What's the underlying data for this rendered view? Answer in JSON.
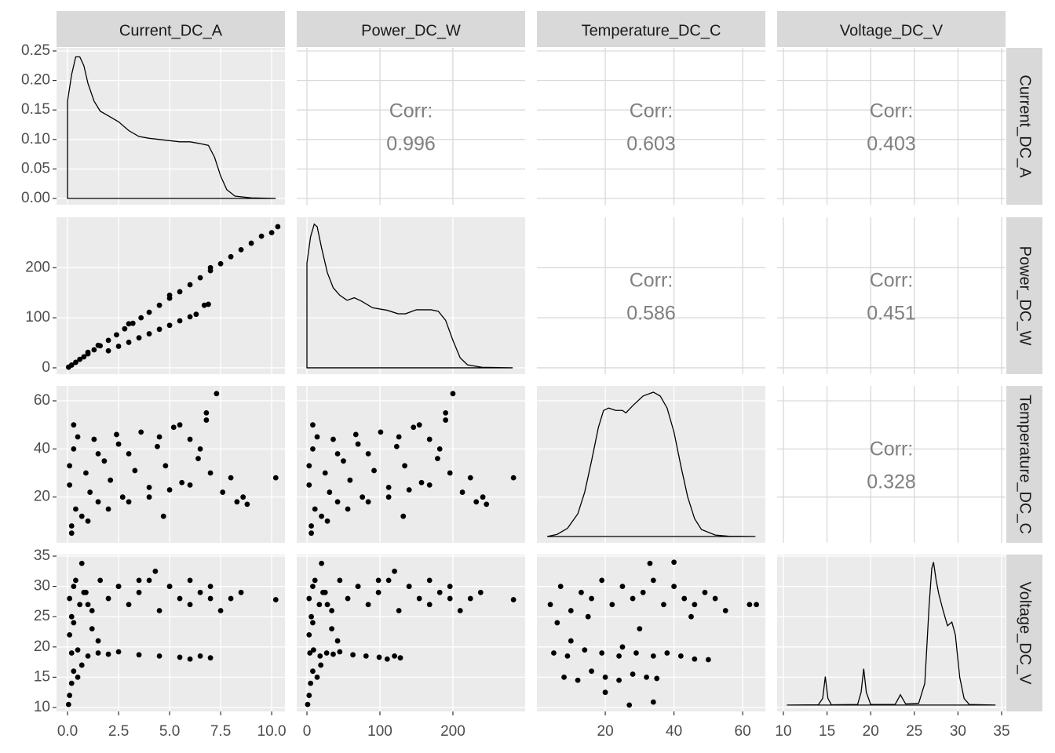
{
  "chart_data": {
    "type": "pairs",
    "variables": [
      "Current_DC_A",
      "Power_DC_W",
      "Temperature_DC_C",
      "Voltage_DC_V"
    ],
    "corr_label": "Corr:",
    "color": "#000000",
    "grid": true,
    "columns": [
      {
        "xlim": [
          -0.54,
          10.65
        ],
        "xticks": [
          {
            "value": 0,
            "label": "0.0"
          },
          2.5,
          {
            "value": 5,
            "label": "5.0"
          },
          7.5,
          {
            "value": 10,
            "label": "10.0"
          }
        ]
      },
      {
        "xlim": [
          -14,
          299
        ],
        "xticks": [
          0,
          100,
          200
        ]
      },
      {
        "xlim": [
          0.1,
          66.6
        ],
        "xticks": [
          20,
          40,
          60
        ]
      },
      {
        "xlim": [
          9.28,
          35.45
        ],
        "xticks": [
          10,
          15,
          20,
          25,
          30,
          35
        ]
      }
    ],
    "rows": [
      {
        "ylim": [
          -0.0106,
          0.2553
        ],
        "yticks": [
          {
            "value": 0,
            "label": "0.00"
          },
          {
            "value": 0.05,
            "label": "0.05"
          },
          {
            "value": 0.1,
            "label": "0.10"
          },
          {
            "value": 0.15,
            "label": "0.15"
          },
          {
            "value": 0.2,
            "label": "0.20"
          },
          0.25
        ]
      },
      {
        "ylim": [
          -12.6,
          300.8
        ],
        "yticks": [
          0,
          100,
          200
        ]
      },
      {
        "ylim": [
          0.98,
          66.2
        ],
        "yticks": [
          20,
          40,
          60
        ]
      },
      {
        "ylim": [
          9.35,
          35.26
        ],
        "yticks": [
          10,
          15,
          20,
          25,
          30,
          35
        ]
      }
    ],
    "panels": [
      [
        {
          "type": "density",
          "x": [
            0,
            0,
            0.2,
            0.4,
            0.6,
            0.8,
            1.0,
            1.3,
            1.6,
            2.0,
            2.5,
            3.0,
            3.5,
            4.0,
            5.0,
            5.5,
            6.0,
            6.5,
            6.9,
            7.2,
            7.5,
            7.8,
            8.2,
            9,
            10.2
          ],
          "y": [
            0,
            0.165,
            0.21,
            0.24,
            0.24,
            0.225,
            0.195,
            0.165,
            0.148,
            0.14,
            0.13,
            0.115,
            0.105,
            0.102,
            0.098,
            0.096,
            0.096,
            0.093,
            0.09,
            0.07,
            0.038,
            0.015,
            0.004,
            0.001,
            0
          ]
        },
        {
          "type": "corr",
          "value": 0.996
        },
        {
          "type": "corr",
          "value": 0.603
        },
        {
          "type": "corr",
          "value": 0.403
        }
      ],
      [
        {
          "type": "scatter",
          "x": [
            0.05,
            0.2,
            0.4,
            0.6,
            0.8,
            1.0,
            1.3,
            1.6,
            2.0,
            2.4,
            2.8,
            3.2,
            3.6,
            4.0,
            4.5,
            5.0,
            5.5,
            6.0,
            6.5,
            7.0,
            7.5,
            8.0,
            8.5,
            9.0,
            9.5,
            10.0,
            10.3,
            2.0,
            2.5,
            3.0,
            3.5,
            4.0,
            4.5,
            5.0,
            5.5,
            6.0,
            6.3,
            6.7,
            6.9,
            1.0,
            1.5,
            3.0,
            5.0,
            7.0
          ],
          "y": [
            1.4,
            5.5,
            11,
            17,
            22,
            28,
            36,
            44,
            55,
            66,
            78,
            89,
            100,
            111,
            125,
            139,
            152,
            166,
            180,
            194,
            208,
            222,
            236,
            249,
            263,
            270,
            282,
            34,
            43,
            51,
            60,
            68,
            77,
            85,
            94,
            102,
            107,
            125,
            127,
            31,
            45,
            88,
            145,
            200
          ]
        },
        {
          "type": "density",
          "x": [
            0,
            0,
            5,
            10,
            14,
            20,
            28,
            36,
            45,
            55,
            65,
            75,
            90,
            110,
            125,
            135,
            150,
            170,
            180,
            190,
            200,
            210,
            220,
            240,
            282
          ],
          "y": [
            0,
            209,
            262,
            287,
            282,
            240,
            190,
            160,
            145,
            135,
            140,
            133,
            120,
            115,
            108,
            108,
            116,
            116,
            113,
            95,
            55,
            20,
            6,
            1,
            0
          ]
        },
        {
          "type": "corr",
          "value": 0.586
        },
        {
          "type": "corr",
          "value": 0.451
        }
      ],
      [
        {
          "type": "scatter",
          "x": [
            0.1,
            0.2,
            0.3,
            0.5,
            0.7,
            0.9,
            1.1,
            1.3,
            1.5,
            1.8,
            2.1,
            2.4,
            2.7,
            3.0,
            3.3,
            3.6,
            4.0,
            4.4,
            4.8,
            5.2,
            5.6,
            6.0,
            6.4,
            6.8,
            7.0,
            7.3,
            7.6,
            8.0,
            8.3,
            8.6,
            8.8,
            0.2,
            0.4,
            1.0,
            2.0,
            3.0,
            4.0,
            5.0,
            6.0,
            6.8,
            0.1,
            0.3,
            1.5,
            2.5,
            4.7,
            4.5,
            5.5,
            6.5,
            10.2
          ],
          "y": [
            25,
            8,
            40,
            45,
            12,
            30,
            22,
            44,
            18,
            35,
            27,
            46,
            20,
            38,
            31,
            47,
            24,
            41,
            33,
            49,
            26,
            44,
            36,
            52,
            30,
            63,
            22,
            28,
            18,
            20,
            17,
            5,
            15,
            10,
            15,
            18,
            20,
            23,
            25,
            55,
            33,
            50,
            38,
            42,
            12,
            45,
            50,
            40,
            28
          ]
        },
        {
          "type": "scatter",
          "x": [
            3,
            6,
            8,
            14,
            20,
            25,
            31,
            36,
            42,
            50,
            59,
            67,
            76,
            84,
            92,
            101,
            112,
            123,
            134,
            146,
            157,
            168,
            179,
            190,
            196,
            200,
            213,
            224,
            232,
            241,
            246,
            6,
            11,
            28,
            56,
            84,
            112,
            140,
            168,
            190,
            3,
            8,
            42,
            70,
            132,
            126,
            154,
            182,
            283
          ],
          "y": [
            25,
            8,
            40,
            45,
            12,
            30,
            22,
            44,
            18,
            35,
            27,
            46,
            20,
            38,
            31,
            47,
            24,
            41,
            33,
            49,
            26,
            44,
            36,
            52,
            30,
            63,
            22,
            28,
            18,
            20,
            17,
            5,
            15,
            10,
            15,
            18,
            20,
            23,
            25,
            55,
            33,
            50,
            38,
            42,
            12,
            45,
            50,
            40,
            28
          ]
        },
        {
          "type": "density",
          "x": [
            3.1,
            6,
            9,
            12,
            14,
            16,
            18,
            19.5,
            21,
            23,
            25,
            26,
            28,
            31,
            34,
            36,
            38,
            40,
            42,
            44,
            46,
            48,
            52,
            56,
            63.7
          ],
          "y": [
            3.6,
            4.5,
            7,
            13,
            22,
            35,
            49,
            56,
            57,
            56,
            56,
            55,
            58,
            62,
            63.6,
            62,
            57,
            47,
            33,
            20,
            11,
            6.5,
            4.2,
            3.7,
            3.6
          ]
        },
        {
          "type": "corr",
          "value": 0.328
        }
      ],
      [
        {
          "type": "scatter",
          "x": [
            0.1,
            0.3,
            0.6,
            0.9,
            1.2,
            1.6,
            2.0,
            2.5,
            3.0,
            3.5,
            4.0,
            4.5,
            5.0,
            5.5,
            6.0,
            6.5,
            7.0,
            7.5,
            8.0,
            8.5,
            10.2,
            0.2,
            0.5,
            1.0,
            1.5,
            2.0,
            2.5,
            3.5,
            4.5,
            5.5,
            6.0,
            6.5,
            7.0,
            0.2,
            0.4,
            0.8,
            1.0,
            2.5,
            3.5,
            5.0,
            6.0,
            7.0,
            0.05,
            0.1,
            0.2,
            0.3,
            0.5,
            0.7,
            0.1,
            1.2,
            1.5,
            0.7,
            0.3,
            4.3
          ],
          "y": [
            28,
            30,
            27,
            29,
            26,
            31,
            28,
            30,
            27,
            29,
            31,
            26,
            30,
            28,
            27,
            29,
            28,
            26,
            28,
            29,
            27.8,
            19,
            19.5,
            18.5,
            19,
            18.8,
            19.2,
            18.7,
            18.5,
            18.3,
            18,
            18.5,
            18.2,
            25,
            31,
            29,
            27,
            30,
            31,
            30,
            31,
            30,
            10.5,
            12,
            14,
            16,
            15,
            17,
            22,
            23,
            21,
            33.8,
            24,
            32.5
          ]
        },
        {
          "type": "scatter",
          "x": [
            3,
            8,
            17,
            25,
            34,
            45,
            56,
            70,
            84,
            98,
            112,
            126,
            140,
            154,
            168,
            182,
            196,
            210,
            224,
            238,
            283,
            4,
            9,
            18,
            27,
            36,
            45,
            63,
            81,
            99,
            110,
            120,
            128,
            6,
            11,
            22,
            28,
            70,
            98,
            140,
            168,
            196,
            1,
            3,
            5,
            8,
            14,
            19,
            3,
            34,
            42,
            20,
            8,
            120
          ],
          "y": [
            28,
            30,
            27,
            29,
            26,
            31,
            28,
            30,
            27,
            29,
            31,
            26,
            30,
            28,
            27,
            29,
            28,
            26,
            28,
            29,
            27.8,
            19,
            19.5,
            18.5,
            19,
            18.8,
            19.2,
            18.7,
            18.5,
            18.3,
            18,
            18.5,
            18.2,
            25,
            31,
            29,
            27,
            30,
            31,
            30,
            31,
            30,
            10.5,
            12,
            14,
            16,
            15,
            17,
            22,
            23,
            21,
            33.8,
            24,
            32.5
          ]
        },
        {
          "type": "scatter",
          "x": [
            4,
            7,
            10,
            13,
            16,
            19,
            22,
            25,
            28,
            31,
            34,
            37,
            40,
            43,
            46,
            49,
            52,
            55,
            62,
            64,
            5,
            9,
            14,
            19,
            24,
            29,
            34,
            38,
            42,
            46,
            50,
            8,
            12,
            16,
            20,
            24,
            28,
            32,
            35,
            20,
            27,
            34,
            33,
            40,
            6,
            15,
            30,
            45,
            10,
            25
          ],
          "y": [
            27,
            30,
            26,
            29,
            28,
            31,
            27,
            30,
            28,
            29,
            31,
            27,
            30,
            28,
            27,
            29,
            28,
            26,
            27,
            27,
            19,
            18.5,
            19.5,
            19,
            18.5,
            19,
            18.5,
            19,
            18.5,
            18,
            17.9,
            15,
            14.5,
            16,
            15,
            14.5,
            15.5,
            15,
            14.8,
            12.5,
            10.4,
            10.9,
            33.8,
            34,
            24,
            25,
            23,
            25,
            21,
            20
          ]
        },
        {
          "type": "density",
          "x": [
            10.4,
            14,
            14.5,
            14.8,
            15.1,
            15.5,
            18.5,
            18.9,
            19.2,
            19.5,
            20,
            22.8,
            23.4,
            24,
            25.5,
            26.2,
            26.7,
            27.0,
            27.2,
            27.5,
            27.8,
            28.3,
            28.8,
            29.3,
            29.7,
            30.2,
            30.7,
            31.3,
            34.3
          ],
          "y": [
            10.4,
            10.45,
            11.5,
            15.1,
            11.5,
            10.45,
            10.5,
            12.5,
            16.4,
            12.5,
            10.5,
            10.5,
            12.1,
            10.6,
            10.7,
            14,
            27,
            33,
            34,
            31,
            28.75,
            26,
            23.5,
            24.1,
            22,
            15,
            11.5,
            10.5,
            10.4
          ]
        }
      ]
    ]
  }
}
